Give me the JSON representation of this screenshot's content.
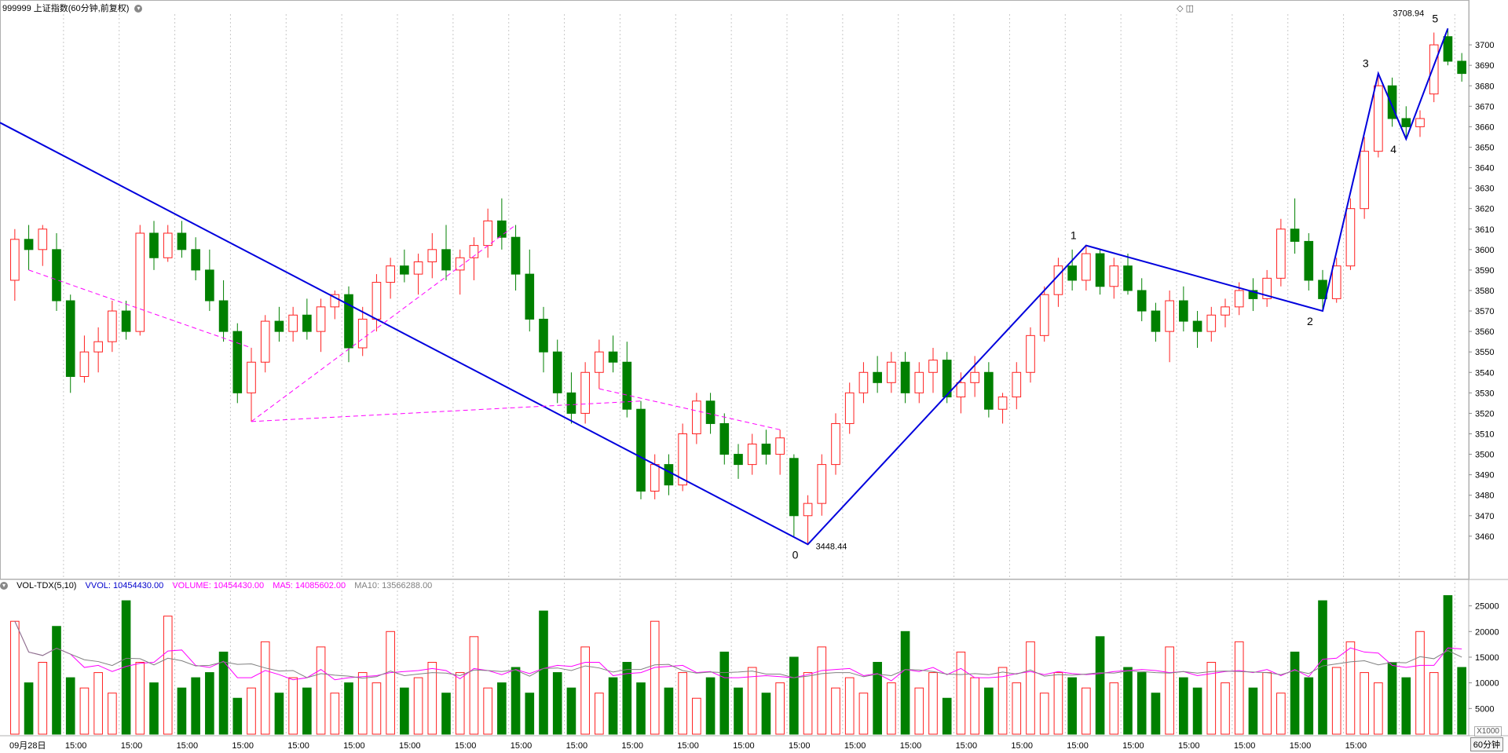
{
  "header": {
    "title": "999999 上证指数(60分钟,前复权)"
  },
  "volume_panel": {
    "indicator": "VOL-TDX(5,10)",
    "vvol": "VVOL: 10454430.00",
    "volume": "VOLUME: 10454430.00",
    "ma5": "MA5: 14085602.00",
    "ma10": "MA10: 13566288.00",
    "unit_tag": "X1000"
  },
  "period_tag": "60分钟",
  "colors": {
    "up": "#ff2020",
    "down": "#008000",
    "wave_line": "#0000dd",
    "dash_line": "#ff00ff",
    "ma5": "#ff00ff",
    "ma10": "#808080",
    "grid": "#c8c8c8"
  },
  "chart_data": [
    {
      "type": "candlestick",
      "name": "上证指数",
      "ylim": [
        3440,
        3715
      ],
      "yticks": [
        3460,
        3470,
        3480,
        3490,
        3500,
        3510,
        3520,
        3530,
        3540,
        3550,
        3560,
        3570,
        3580,
        3590,
        3600,
        3610,
        3620,
        3630,
        3640,
        3650,
        3660,
        3670,
        3680,
        3690,
        3700
      ],
      "x_labels": [
        "09月28日",
        "15:00",
        "15:00",
        "15:00",
        "15:00",
        "15:00",
        "15:00",
        "15:00",
        "15:00",
        "15:00",
        "15:00",
        "15:00",
        "15:00",
        "15:00",
        "15:00",
        "15:00",
        "15:00",
        "15:00",
        "15:00",
        "15:00",
        "15:00",
        "15:00",
        "15:00",
        "15:00",
        "15:00"
      ],
      "bars": [
        [
          3585,
          3610,
          3575,
          3605
        ],
        [
          3605,
          3612,
          3590,
          3600
        ],
        [
          3600,
          3612,
          3592,
          3610
        ],
        [
          3600,
          3608,
          3570,
          3575
        ],
        [
          3575,
          3578,
          3530,
          3538
        ],
        [
          3538,
          3558,
          3535,
          3550
        ],
        [
          3550,
          3562,
          3540,
          3555
        ],
        [
          3555,
          3575,
          3550,
          3570
        ],
        [
          3570,
          3575,
          3556,
          3560
        ],
        [
          3560,
          3612,
          3558,
          3608
        ],
        [
          3608,
          3614,
          3590,
          3596
        ],
        [
          3596,
          3612,
          3594,
          3608
        ],
        [
          3608,
          3614,
          3596,
          3600
        ],
        [
          3600,
          3606,
          3585,
          3590
        ],
        [
          3590,
          3600,
          3570,
          3575
        ],
        [
          3575,
          3585,
          3555,
          3560
        ],
        [
          3560,
          3564,
          3525,
          3530
        ],
        [
          3530,
          3552,
          3516,
          3545
        ],
        [
          3545,
          3568,
          3540,
          3565
        ],
        [
          3565,
          3572,
          3555,
          3560
        ],
        [
          3560,
          3572,
          3555,
          3568
        ],
        [
          3568,
          3576,
          3556,
          3560
        ],
        [
          3560,
          3576,
          3550,
          3572
        ],
        [
          3572,
          3580,
          3566,
          3578
        ],
        [
          3578,
          3582,
          3545,
          3552
        ],
        [
          3552,
          3572,
          3548,
          3566
        ],
        [
          3566,
          3588,
          3560,
          3584
        ],
        [
          3584,
          3596,
          3576,
          3592
        ],
        [
          3592,
          3600,
          3584,
          3588
        ],
        [
          3588,
          3598,
          3578,
          3594
        ],
        [
          3594,
          3608,
          3586,
          3600
        ],
        [
          3600,
          3612,
          3585,
          3590
        ],
        [
          3590,
          3600,
          3578,
          3596
        ],
        [
          3596,
          3606,
          3585,
          3602
        ],
        [
          3602,
          3620,
          3596,
          3614
        ],
        [
          3614,
          3625,
          3600,
          3606
        ],
        [
          3606,
          3612,
          3580,
          3588
        ],
        [
          3588,
          3600,
          3560,
          3566
        ],
        [
          3566,
          3572,
          3540,
          3550
        ],
        [
          3550,
          3556,
          3525,
          3530
        ],
        [
          3530,
          3540,
          3515,
          3520
        ],
        [
          3520,
          3545,
          3515,
          3540
        ],
        [
          3540,
          3556,
          3532,
          3550
        ],
        [
          3550,
          3558,
          3540,
          3545
        ],
        [
          3545,
          3555,
          3518,
          3522
        ],
        [
          3522,
          3526,
          3478,
          3482
        ],
        [
          3482,
          3500,
          3478,
          3495
        ],
        [
          3495,
          3500,
          3480,
          3485
        ],
        [
          3485,
          3515,
          3482,
          3510
        ],
        [
          3510,
          3530,
          3505,
          3526
        ],
        [
          3526,
          3530,
          3510,
          3515
        ],
        [
          3515,
          3520,
          3495,
          3500
        ],
        [
          3500,
          3505,
          3488,
          3495
        ],
        [
          3495,
          3510,
          3490,
          3505
        ],
        [
          3505,
          3512,
          3495,
          3500
        ],
        [
          3500,
          3512,
          3490,
          3508
        ],
        [
          3498,
          3500,
          3460,
          3470
        ],
        [
          3470,
          3480,
          3456,
          3476
        ],
        [
          3476,
          3500,
          3470,
          3495
        ],
        [
          3495,
          3520,
          3490,
          3515
        ],
        [
          3515,
          3535,
          3510,
          3530
        ],
        [
          3530,
          3545,
          3525,
          3540
        ],
        [
          3540,
          3548,
          3530,
          3535
        ],
        [
          3535,
          3550,
          3530,
          3545
        ],
        [
          3545,
          3550,
          3525,
          3530
        ],
        [
          3530,
          3545,
          3525,
          3540
        ],
        [
          3540,
          3552,
          3530,
          3546
        ],
        [
          3546,
          3550,
          3525,
          3528
        ],
        [
          3528,
          3540,
          3520,
          3535
        ],
        [
          3535,
          3548,
          3528,
          3540
        ],
        [
          3540,
          3545,
          3518,
          3522
        ],
        [
          3522,
          3530,
          3515,
          3528
        ],
        [
          3528,
          3545,
          3522,
          3540
        ],
        [
          3540,
          3562,
          3535,
          3558
        ],
        [
          3558,
          3582,
          3555,
          3578
        ],
        [
          3578,
          3596,
          3572,
          3592
        ],
        [
          3592,
          3600,
          3580,
          3585
        ],
        [
          3585,
          3602,
          3580,
          3598
        ],
        [
          3598,
          3600,
          3578,
          3582
        ],
        [
          3582,
          3596,
          3576,
          3592
        ],
        [
          3592,
          3598,
          3578,
          3580
        ],
        [
          3580,
          3586,
          3565,
          3570
        ],
        [
          3570,
          3574,
          3555,
          3560
        ],
        [
          3560,
          3580,
          3545,
          3575
        ],
        [
          3575,
          3582,
          3560,
          3565
        ],
        [
          3565,
          3570,
          3552,
          3560
        ],
        [
          3560,
          3572,
          3555,
          3568
        ],
        [
          3568,
          3576,
          3562,
          3572
        ],
        [
          3572,
          3584,
          3568,
          3580
        ],
        [
          3580,
          3586,
          3570,
          3576
        ],
        [
          3576,
          3590,
          3572,
          3586
        ],
        [
          3586,
          3615,
          3582,
          3610
        ],
        [
          3610,
          3625,
          3598,
          3604
        ],
        [
          3604,
          3608,
          3580,
          3585
        ],
        [
          3585,
          3590,
          3570,
          3576
        ],
        [
          3576,
          3596,
          3574,
          3592
        ],
        [
          3592,
          3625,
          3590,
          3620
        ],
        [
          3620,
          3655,
          3615,
          3648
        ],
        [
          3648,
          3686,
          3645,
          3680
        ],
        [
          3680,
          3684,
          3660,
          3664
        ],
        [
          3664,
          3670,
          3654,
          3660
        ],
        [
          3660,
          3668,
          3655,
          3664
        ],
        [
          3676,
          3706,
          3672,
          3700
        ],
        [
          3704,
          3708,
          3690,
          3692
        ],
        [
          3692,
          3696,
          3682,
          3686
        ]
      ],
      "wave_labels": [
        {
          "label": "0",
          "value": 3448.44,
          "text": "3448.44"
        },
        {
          "label": "1",
          "value": 3602
        },
        {
          "label": "2",
          "value": 3574
        },
        {
          "label": "3",
          "value": 3686
        },
        {
          "label": "4",
          "value": 3654
        },
        {
          "label": "5",
          "value": 3708.94,
          "text": "3708.94"
        }
      ]
    },
    {
      "type": "bar",
      "name": "VOLUME",
      "ylim": [
        0,
        28000
      ],
      "yticks": [
        5000,
        10000,
        15000,
        20000,
        25000
      ],
      "values": [
        22000,
        10000,
        14000,
        21000,
        11000,
        9000,
        12000,
        8000,
        26000,
        14000,
        10000,
        23000,
        9000,
        11000,
        12000,
        16000,
        7000,
        9000,
        18000,
        8000,
        11000,
        9000,
        17000,
        8000,
        10000,
        12000,
        10000,
        20000,
        9000,
        11000,
        14000,
        8000,
        12000,
        19000,
        9000,
        10000,
        13000,
        8000,
        24000,
        12000,
        9000,
        17000,
        8000,
        11000,
        14000,
        10000,
        22000,
        9000,
        12000,
        7000,
        11000,
        16000,
        9000,
        13000,
        8000,
        10000,
        15000,
        12000,
        17000,
        9000,
        11000,
        8000,
        14000,
        10000,
        20000,
        9000,
        12000,
        7000,
        16000,
        11000,
        9000,
        13000,
        10000,
        18000,
        8000,
        12000,
        11000,
        9000,
        19000,
        10000,
        13000,
        12000,
        8000,
        17000,
        11000,
        9000,
        14000,
        10000,
        18000,
        9000,
        12000,
        8000,
        16000,
        11000,
        26000,
        13000,
        18000,
        12000,
        10000,
        14000,
        11000,
        20000,
        12000,
        27000,
        13000
      ]
    }
  ]
}
